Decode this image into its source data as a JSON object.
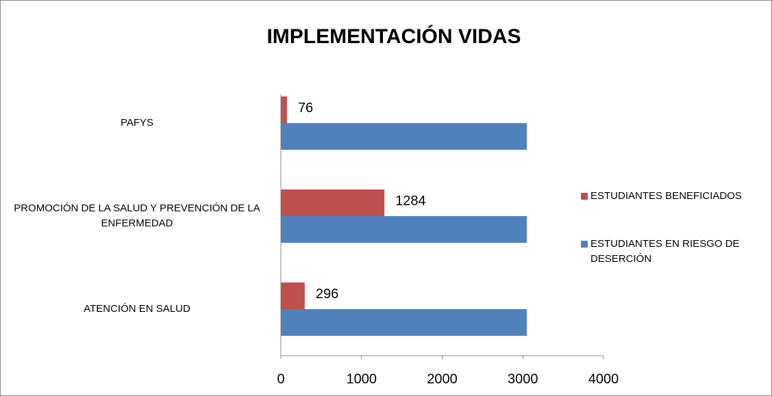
{
  "chart_data": {
    "type": "barh",
    "title": "IMPLEMENTACIÓN VIDAS",
    "categories": [
      "ATENCIÓN EN SALUD",
      "PROMOCIÓN DE LA SALUD Y PREVENCIÓN DE LA ENFERMEDAD",
      "PAFYS"
    ],
    "series": [
      {
        "name": "ESTUDIANTES BENEFICIADOS",
        "color": "#c0504d",
        "values": [
          296,
          1284,
          76
        ],
        "show_labels": true
      },
      {
        "name": "ESTUDIANTES EN RIESGO DE DESERCIÓN",
        "color": "#4f81bd",
        "values": [
          3050,
          3050,
          3050
        ],
        "show_labels": false
      }
    ],
    "xlim": [
      0,
      4000
    ],
    "xticks": [
      0,
      1000,
      2000,
      3000,
      4000
    ],
    "grid": false,
    "legend": "right"
  }
}
